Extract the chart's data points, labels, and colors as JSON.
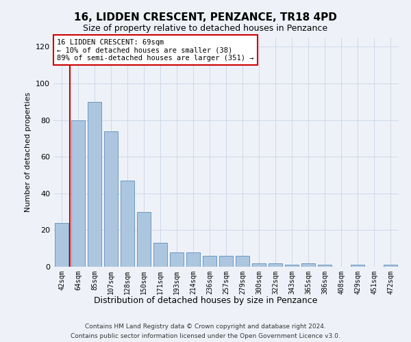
{
  "title": "16, LIDDEN CRESCENT, PENZANCE, TR18 4PD",
  "subtitle": "Size of property relative to detached houses in Penzance",
  "xlabel": "Distribution of detached houses by size in Penzance",
  "ylabel": "Number of detached properties",
  "footer_line1": "Contains HM Land Registry data © Crown copyright and database right 2024.",
  "footer_line2": "Contains public sector information licensed under the Open Government Licence v3.0.",
  "categories": [
    "42sqm",
    "64sqm",
    "85sqm",
    "107sqm",
    "128sqm",
    "150sqm",
    "171sqm",
    "193sqm",
    "214sqm",
    "236sqm",
    "257sqm",
    "279sqm",
    "300sqm",
    "322sqm",
    "343sqm",
    "365sqm",
    "386sqm",
    "408sqm",
    "429sqm",
    "451sqm",
    "472sqm"
  ],
  "values": [
    24,
    80,
    90,
    74,
    47,
    30,
    13,
    8,
    8,
    6,
    6,
    6,
    2,
    2,
    1,
    2,
    1,
    0,
    1,
    0,
    1
  ],
  "bar_color": "#adc6e0",
  "bar_edge_color": "#5b8db8",
  "highlight_bar_index": 1,
  "highlight_color": "#cc0000",
  "ylim": [
    0,
    125
  ],
  "yticks": [
    0,
    20,
    40,
    60,
    80,
    100,
    120
  ],
  "annotation_line1": "16 LIDDEN CRESCENT: 69sqm",
  "annotation_line2": "← 10% of detached houses are smaller (38)",
  "annotation_line3": "89% of semi-detached houses are larger (351) →",
  "annotation_box_color": "#ffffff",
  "annotation_box_edge_color": "#cc0000",
  "grid_color": "#d0d8e8",
  "background_color": "#eef2f8",
  "title_fontsize": 11,
  "subtitle_fontsize": 9,
  "ylabel_fontsize": 8,
  "xlabel_fontsize": 9
}
